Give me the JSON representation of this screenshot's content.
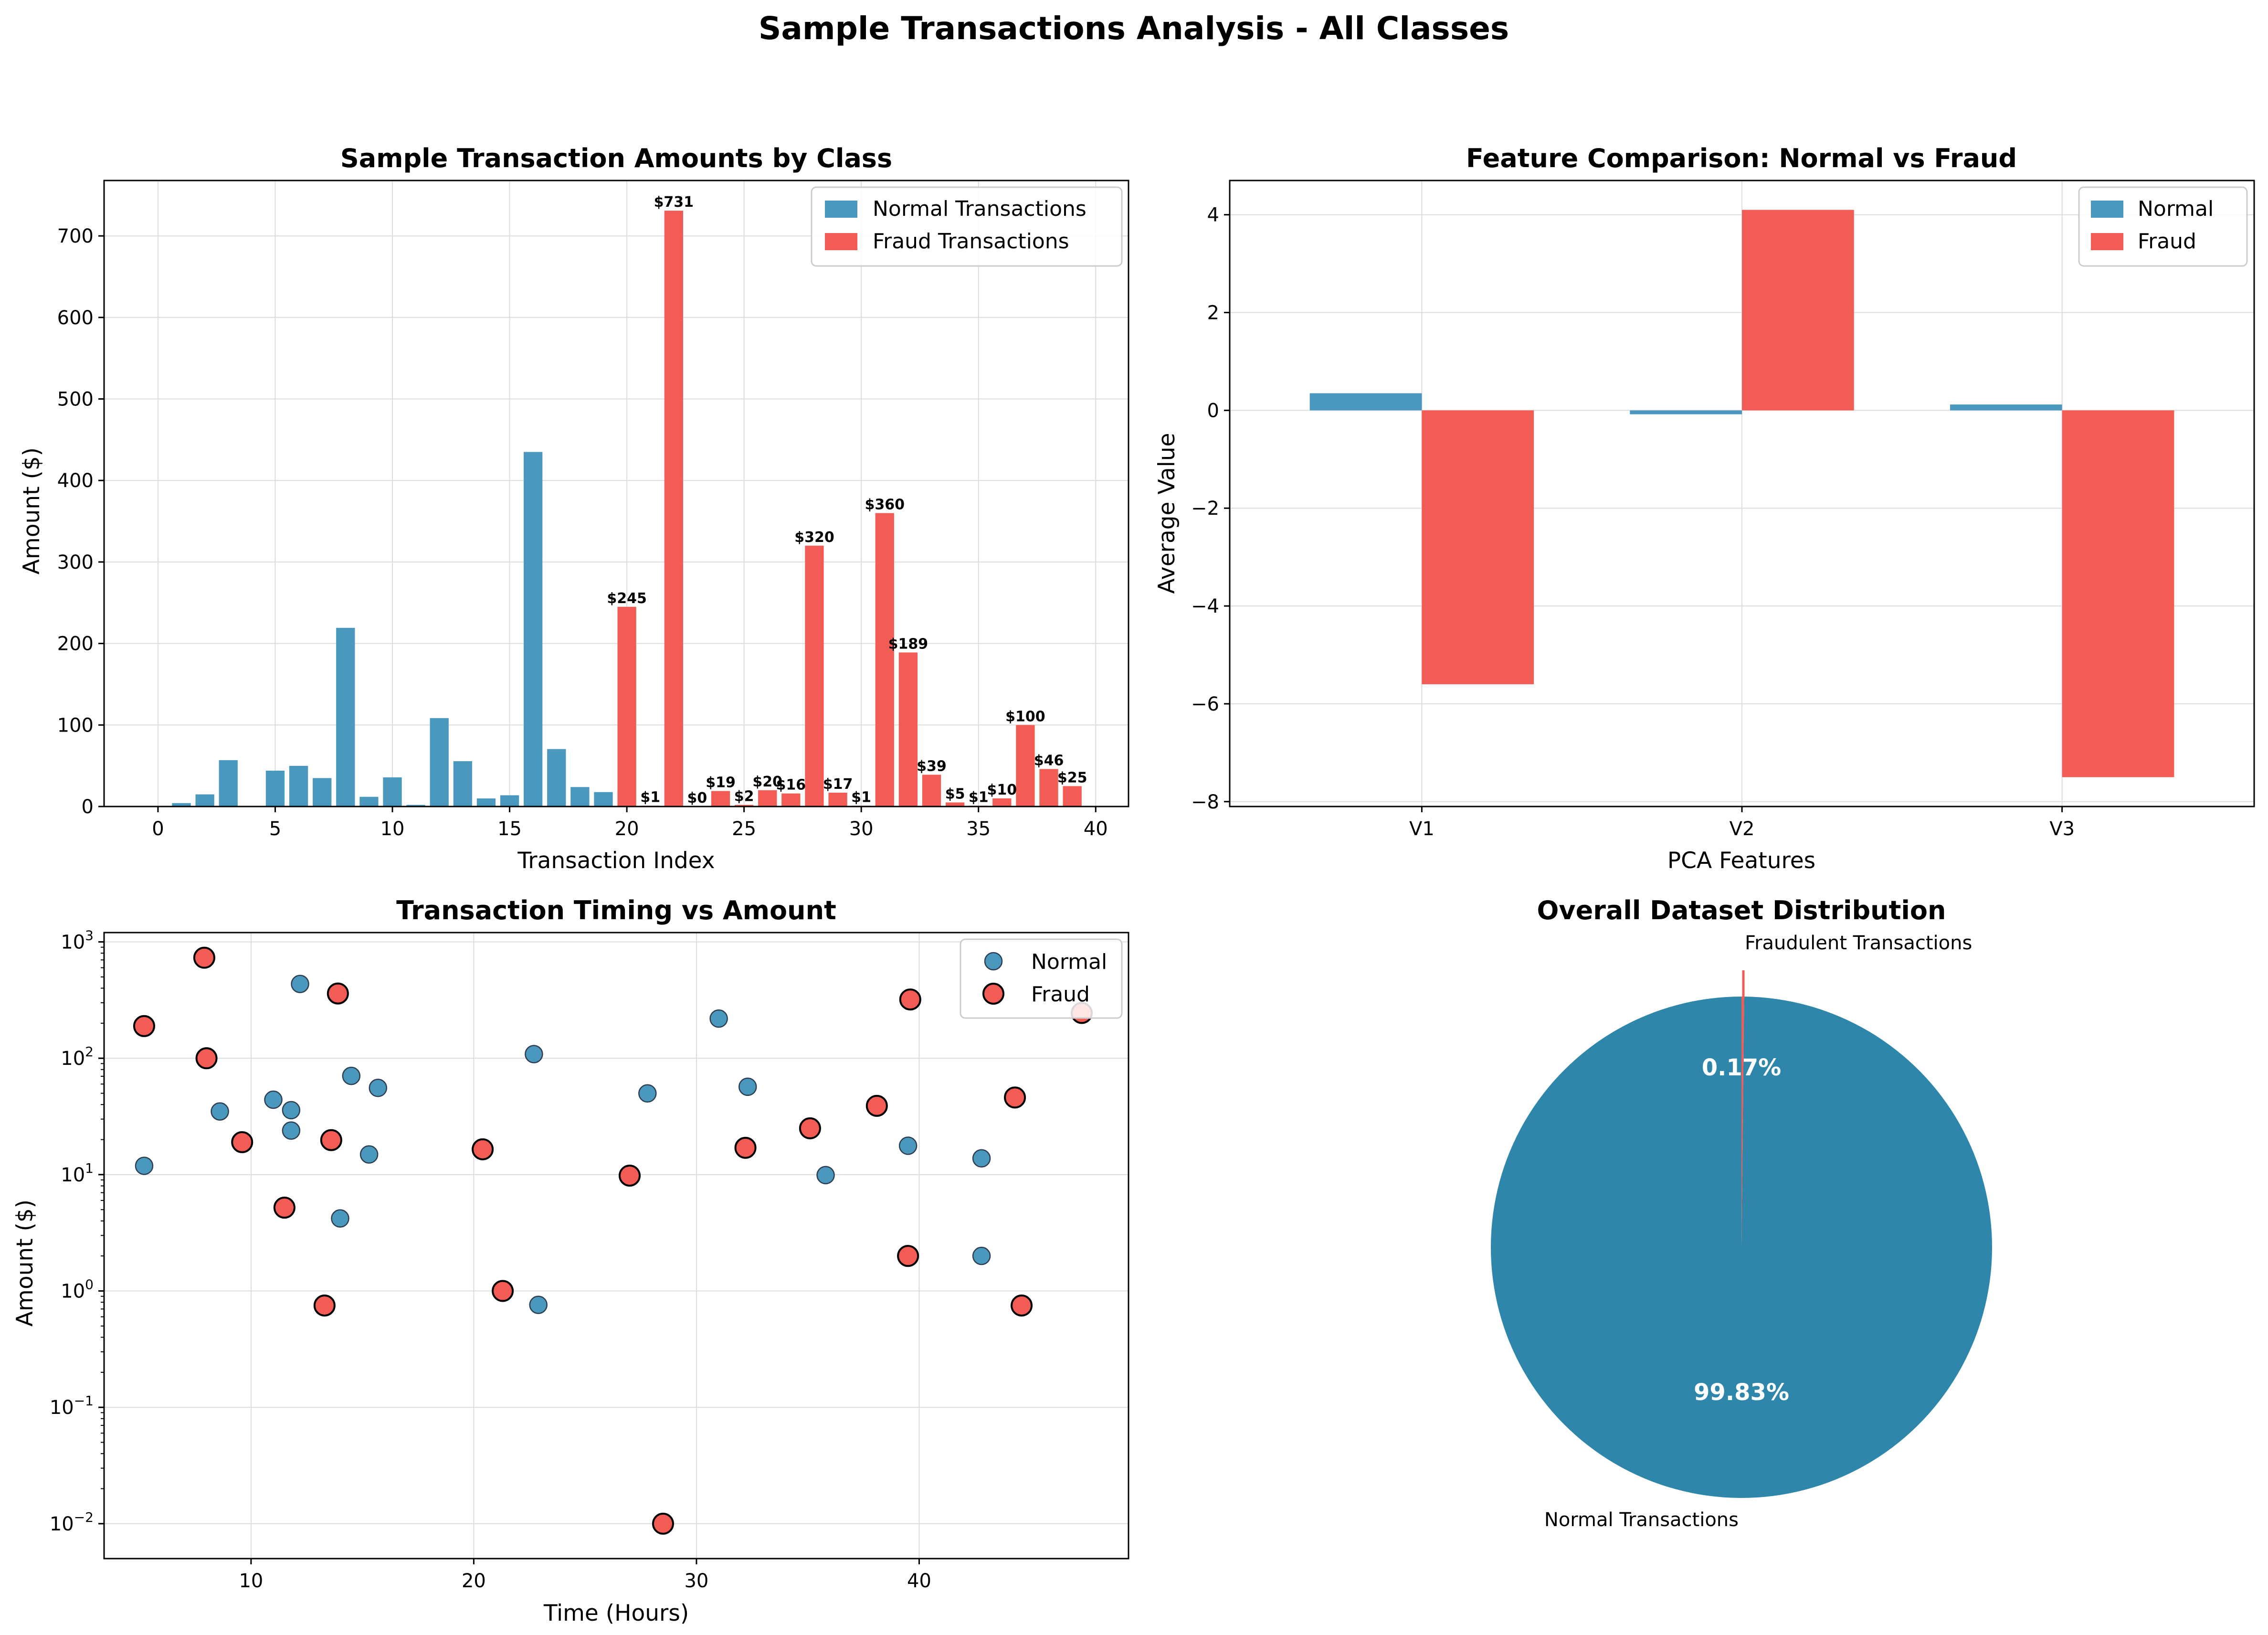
{
  "suptitle": "Sample Transactions Analysis - All Classes",
  "colors": {
    "normal": "#4a98bd",
    "fraud": "#f25c54",
    "pie_normal": "#2e86ab",
    "pie_fraud": "#f25c54",
    "grid": "#dcdcdc"
  },
  "chart_data": [
    {
      "type": "bar",
      "title": "Sample Transaction Amounts by Class",
      "xlabel": "Transaction Index",
      "ylabel": "Amount ($)",
      "xlim": [
        -2.3,
        41.4
      ],
      "ylim": [
        0,
        768
      ],
      "xticks": [
        0,
        5,
        10,
        15,
        20,
        25,
        30,
        35,
        40
      ],
      "yticks": [
        0,
        100,
        200,
        300,
        400,
        500,
        600,
        700
      ],
      "legend": "top-right",
      "series": [
        {
          "name": "Normal Transactions",
          "x": [
            0,
            1,
            2,
            3,
            4,
            5,
            6,
            7,
            8,
            9,
            10,
            11,
            12,
            13,
            14,
            15,
            16,
            17,
            18,
            19
          ],
          "values": [
            0.76,
            4.2,
            14.9,
            56.9,
            0,
            44,
            49.9,
            34.9,
            219.2,
            11.9,
            35.8,
            2,
            108.5,
            55.6,
            9.9,
            13.8,
            435,
            70.5,
            23.9,
            17.7
          ]
        },
        {
          "name": "Fraud Transactions",
          "x": [
            20,
            21,
            22,
            23,
            24,
            25,
            26,
            27,
            28,
            29,
            30,
            31,
            32,
            33,
            34,
            35,
            36,
            37,
            38,
            39
          ],
          "values": [
            245,
            1,
            731,
            0,
            19,
            2,
            20,
            16,
            320,
            17,
            1,
            360,
            189,
            39,
            5,
            1,
            10,
            100,
            46,
            25
          ],
          "labels": [
            "$245",
            "$1",
            "$731",
            "$0",
            "$19",
            "$2",
            "$20",
            "$16",
            "$320",
            "$17",
            "$1",
            "$360",
            "$189",
            "$39",
            "$5",
            "$1",
            "$10",
            "$100",
            "$46",
            "$25"
          ]
        }
      ]
    },
    {
      "type": "bar",
      "title": "Feature Comparison: Normal vs Fraud",
      "xlabel": "PCA Features",
      "ylabel": "Average Value",
      "categories": [
        "V1",
        "V2",
        "V3"
      ],
      "ylim": [
        -8.1,
        4.7
      ],
      "yticks": [
        -8,
        -6,
        -4,
        -2,
        0,
        2,
        4
      ],
      "legend": "top-right",
      "series": [
        {
          "name": "Normal",
          "values": [
            0.35,
            -0.08,
            0.12
          ]
        },
        {
          "name": "Fraud",
          "values": [
            -5.6,
            4.1,
            -7.5
          ]
        }
      ]
    },
    {
      "type": "scatter",
      "title": "Transaction Timing vs Amount",
      "xlabel": "Time (Hours)",
      "ylabel": "Amount ($)",
      "yscale": "log",
      "xlim": [
        3.4,
        49.4
      ],
      "xticks": [
        10,
        20,
        30,
        40
      ],
      "ylim_exp": [
        -2.3,
        1.08
      ],
      "yticks": [
        {
          "exp": 3,
          "label": "10",
          "sup": "3"
        },
        {
          "exp": 2,
          "label": "10",
          "sup": "2"
        },
        {
          "exp": 1,
          "label": "10",
          "sup": "1"
        },
        {
          "exp": 0,
          "label": "10",
          "sup": "0"
        },
        {
          "exp": -1,
          "label": "10",
          "sup": "−1"
        },
        {
          "exp": -2,
          "label": "10",
          "sup": "−2"
        }
      ],
      "legend": "top-right",
      "series": [
        {
          "name": "Normal",
          "points": [
            [
              5.2,
              11.9
            ],
            [
              8.6,
              34.9
            ],
            [
              11.0,
              44
            ],
            [
              11.8,
              35.8
            ],
            [
              11.8,
              23.9
            ],
            [
              12.2,
              435
            ],
            [
              14.0,
              4.2
            ],
            [
              14.5,
              70.5
            ],
            [
              15.3,
              14.9
            ],
            [
              15.7,
              55.6
            ],
            [
              22.7,
              108.5
            ],
            [
              22.9,
              0.76
            ],
            [
              27.8,
              49.9
            ],
            [
              31.0,
              219.2
            ],
            [
              32.3,
              56.9
            ],
            [
              35.8,
              9.9
            ],
            [
              39.5,
              17.7
            ],
            [
              42.8,
              2
            ],
            [
              42.8,
              13.8
            ]
          ]
        },
        {
          "name": "Fraud",
          "points": [
            [
              5.2,
              189
            ],
            [
              7.9,
              731
            ],
            [
              8.0,
              100
            ],
            [
              9.6,
              19
            ],
            [
              11.5,
              5.2
            ],
            [
              13.3,
              0.75
            ],
            [
              13.6,
              19.8
            ],
            [
              13.9,
              360
            ],
            [
              20.4,
              16.5
            ],
            [
              21.3,
              1
            ],
            [
              27.0,
              9.8
            ],
            [
              28.5,
              0.01
            ],
            [
              32.2,
              17
            ],
            [
              35.1,
              25
            ],
            [
              38.1,
              39
            ],
            [
              39.5,
              2
            ],
            [
              39.6,
              320
            ],
            [
              44.3,
              46
            ],
            [
              44.6,
              0.75
            ],
            [
              47.3,
              245
            ]
          ]
        }
      ]
    },
    {
      "type": "pie",
      "title": "Overall Dataset Distribution",
      "slices": [
        {
          "label": "Normal Transactions",
          "value": 99.83,
          "pct": "99.83%"
        },
        {
          "label": "Fraudulent Transactions",
          "value": 0.17,
          "pct": "0.17%"
        }
      ]
    }
  ]
}
